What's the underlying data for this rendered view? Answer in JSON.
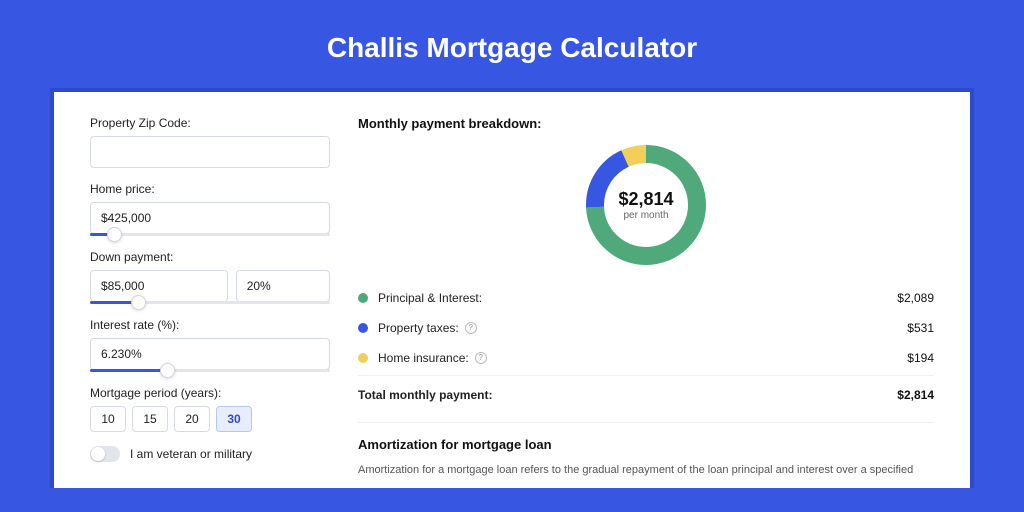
{
  "page": {
    "title": "Challis Mortgage Calculator",
    "background_color": "#3757e2",
    "card_border_color": "#2d4bc7",
    "card_background": "#ffffff"
  },
  "form": {
    "zip": {
      "label": "Property Zip Code:",
      "value": ""
    },
    "home_price": {
      "label": "Home price:",
      "value": "$425,000",
      "slider_pct": 10
    },
    "down_payment": {
      "label": "Down payment:",
      "amount": "$85,000",
      "percent": "20%",
      "slider_pct": 20
    },
    "interest_rate": {
      "label": "Interest rate (%):",
      "value": "6.230%",
      "slider_pct": 32
    },
    "mortgage_period": {
      "label": "Mortgage period (years):",
      "options": [
        "10",
        "15",
        "20",
        "30"
      ],
      "selected_index": 3
    },
    "veteran": {
      "label": "I am veteran or military",
      "on": false
    }
  },
  "breakdown": {
    "title": "Monthly payment breakdown:",
    "donut": {
      "type": "donut",
      "center_amount": "$2,814",
      "center_sub": "per month",
      "radius": 60,
      "stroke_width": 18,
      "background_color": "#ffffff",
      "slices": [
        {
          "label": "Principal & Interest:",
          "value": "$2,089",
          "pct": 74.2,
          "color": "#4fa97a"
        },
        {
          "label": "Property taxes:",
          "value": "$531",
          "pct": 18.9,
          "color": "#3757e2",
          "info": true
        },
        {
          "label": "Home insurance:",
          "value": "$194",
          "pct": 6.9,
          "color": "#f0cf5b",
          "info": true
        }
      ]
    },
    "total": {
      "label": "Total monthly payment:",
      "value": "$2,814"
    }
  },
  "amortization": {
    "title": "Amortization for mortgage loan",
    "text": "Amortization for a mortgage loan refers to the gradual repayment of the loan principal and interest over a specified"
  }
}
